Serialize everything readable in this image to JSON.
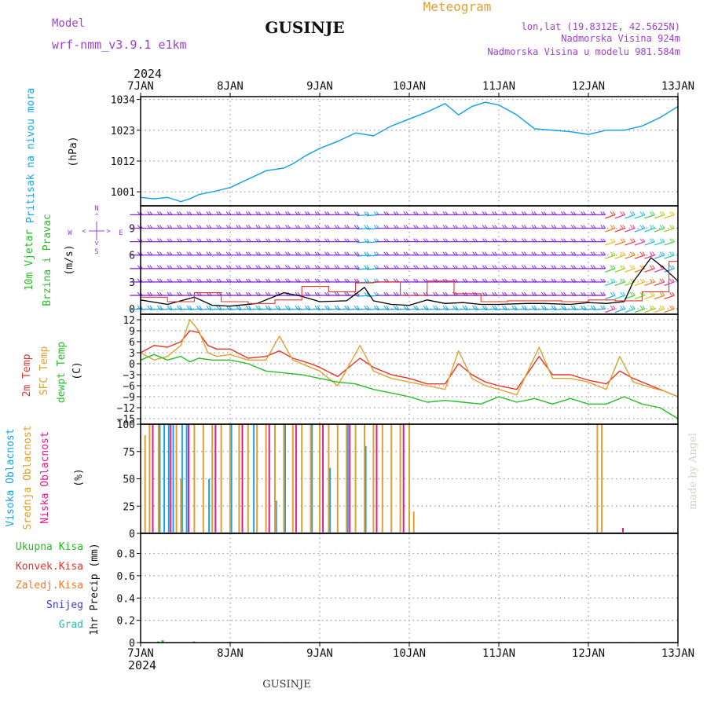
{
  "header": {
    "model_label": "Model",
    "model_name": "wrf-nmm_v3.9.1 e1km",
    "station": "GUSINJE",
    "meteogram_label": "Meteogram",
    "lonlat": "lon,lat (19.8312E, 42.5625N)",
    "elevation": "Nadmorska Visina 924m",
    "model_elevation": "Nadmorska Visina u modelu 981.584m"
  },
  "footer": {
    "station": "GUSINJE",
    "credit": "made by Angel"
  },
  "time_axis": {
    "year": "2024",
    "labels": [
      "7JAN",
      "8JAN",
      "9JAN",
      "10JAN",
      "11JAN",
      "12JAN",
      "13JAN"
    ],
    "range_days": [
      0,
      6
    ]
  },
  "panel_labels": {
    "pressure": [
      "Pritisak na nivou mora",
      "(hPa)"
    ],
    "wind": [
      "10m Vjetar",
      "Brzina i Pravac",
      "(m/s)"
    ],
    "wind_compass": {
      "n": "N",
      "e": "E",
      "w": "W",
      "s": "S",
      "up": "^",
      "down": "v",
      "lt": "<",
      "gt": ">"
    },
    "temp": [
      "2m Temp",
      "SFC Temp",
      "dewpt Temp",
      "(C)"
    ],
    "cloud": [
      "Visoka Oblacnost",
      "Srednja Oblacnost",
      "Niska Oblacnost",
      "(%)"
    ],
    "precip_legend": [
      "Ukupna Kisa",
      "Konvek.Kisa",
      "Zaledj.Kisa",
      "Snijeg",
      "Grad"
    ],
    "precip_axis": "1hr Precip (mm)"
  },
  "colors": {
    "pressure": "#1aa3e8",
    "wind_speed": "#000000",
    "wind_gust": "#e8332a",
    "temp2m": "#e8332a",
    "sfc_temp": "#e0a030",
    "dewpt": "#22c022",
    "cloud_high": "#1aa3e8",
    "cloud_mid": "#e0a030",
    "cloud_low": "#e01b8a",
    "total_rain": "#22c022",
    "conv_rain": "#e8332a",
    "freezing_rain": "#ef7a2a",
    "snow": "#3b3bd6",
    "hail": "#22c2b0",
    "purple_text": "#a040d0",
    "orange_text": "#e0a030"
  },
  "chart_data": [
    {
      "type": "line",
      "name": "pressure",
      "ylim": [
        996,
        1035
      ],
      "yticks": [
        1001,
        1012,
        1023,
        1034
      ],
      "x": [
        0,
        0.15,
        0.3,
        0.45,
        0.55,
        0.65,
        0.8,
        1.0,
        1.2,
        1.4,
        1.6,
        1.7,
        1.85,
        2.0,
        2.2,
        2.4,
        2.6,
        2.8,
        3.0,
        3.2,
        3.4,
        3.55,
        3.7,
        3.85,
        4.0,
        4.2,
        4.4,
        4.6,
        4.8,
        5.0,
        5.2,
        5.4,
        5.6,
        5.8,
        6.0
      ],
      "values": [
        999,
        998.5,
        999,
        997.5,
        998.5,
        1000,
        1001,
        1002.5,
        1005.5,
        1008.5,
        1009.5,
        1011,
        1014,
        1016.5,
        1019,
        1022,
        1021,
        1024.5,
        1027,
        1029.5,
        1032.5,
        1028.5,
        1031.5,
        1033,
        1032,
        1028.5,
        1023.5,
        1023,
        1022.5,
        1021.5,
        1023,
        1023,
        1024.5,
        1027.5,
        1031.5
      ]
    },
    {
      "type": "line",
      "name": "wind",
      "ylim": [
        -0.6,
        11.5
      ],
      "yticks": [
        0,
        3,
        6,
        9
      ],
      "speed": {
        "x": [
          0,
          0.3,
          0.6,
          0.8,
          1.0,
          1.3,
          1.6,
          1.8,
          2.0,
          2.3,
          2.5,
          2.6,
          2.8,
          3.0,
          3.2,
          3.4,
          3.6,
          3.8,
          4.0,
          4.3,
          4.5,
          4.8,
          5.0,
          5.2,
          5.4,
          5.5,
          5.7,
          5.85,
          6.0
        ],
        "values": [
          1.0,
          0.5,
          1.3,
          0.4,
          0.3,
          0.6,
          1.8,
          1.4,
          0.8,
          0.9,
          2.4,
          0.9,
          0.5,
          0.4,
          1.0,
          0.6,
          0.7,
          0.5,
          0.5,
          0.6,
          0.6,
          0.5,
          0.7,
          0.6,
          0.8,
          3.0,
          5.7,
          4.5,
          3.1
        ]
      },
      "gust_x": [
        0,
        0.3,
        0.6,
        0.9,
        1.2,
        1.5,
        1.8,
        2.1,
        2.4,
        2.6,
        2.9,
        3.2,
        3.5,
        3.8,
        4.1,
        4.4,
        4.7,
        5.0,
        5.3,
        5.6,
        5.9
      ],
      "gust_values": [
        1.3,
        0.8,
        1.8,
        0.8,
        0.6,
        1.0,
        2.5,
        1.9,
        2.9,
        3.0,
        1.5,
        3.1,
        1.7,
        0.8,
        0.9,
        0.9,
        0.8,
        1.0,
        0.9,
        1.9,
        5.3
      ]
    },
    {
      "type": "line",
      "name": "temperature",
      "ylim": [
        -16.5,
        13.5
      ],
      "yticks": [
        12,
        9,
        6,
        3,
        0,
        -3,
        -6,
        -9,
        -12,
        -15
      ],
      "series": [
        {
          "name": "2m Temp",
          "x": [
            0,
            0.15,
            0.3,
            0.45,
            0.55,
            0.65,
            0.75,
            0.85,
            1.0,
            1.2,
            1.4,
            1.55,
            1.7,
            1.9,
            2.0,
            2.2,
            2.45,
            2.6,
            2.8,
            3.0,
            3.2,
            3.4,
            3.55,
            3.7,
            3.85,
            4.0,
            4.2,
            4.45,
            4.6,
            4.8,
            5.0,
            5.2,
            5.35,
            5.5,
            5.7,
            5.85,
            6.0
          ],
          "values": [
            3,
            5,
            4.5,
            6,
            9,
            8.5,
            5,
            4,
            4,
            1.5,
            2,
            3.5,
            1.5,
            0,
            -1,
            -3.5,
            1.5,
            -1,
            -3,
            -4,
            -5.5,
            -5.5,
            0,
            -3,
            -5,
            -6,
            -7,
            2,
            -3,
            -3,
            -4.5,
            -5.5,
            -2,
            -4,
            -6,
            -7.5,
            -9
          ]
        },
        {
          "name": "SFC Temp",
          "x": [
            0,
            0.15,
            0.3,
            0.45,
            0.55,
            0.65,
            0.75,
            0.85,
            1.0,
            1.2,
            1.4,
            1.55,
            1.7,
            1.9,
            2.0,
            2.2,
            2.45,
            2.6,
            2.8,
            3.0,
            3.2,
            3.4,
            3.55,
            3.7,
            3.85,
            4.0,
            4.2,
            4.45,
            4.6,
            4.8,
            5.0,
            5.2,
            5.35,
            5.5,
            5.7,
            5.85,
            6.0
          ],
          "values": [
            3,
            1,
            2,
            5,
            12,
            9,
            3,
            2,
            2.5,
            1,
            1,
            7.5,
            1,
            -1,
            -2,
            -6,
            5,
            -2,
            -4,
            -5,
            -6,
            -7,
            3.5,
            -4,
            -6,
            -7,
            -8.5,
            4.5,
            -4,
            -4,
            -5,
            -7,
            2,
            -5,
            -6.5,
            -7.5,
            -9
          ]
        },
        {
          "name": "dewpt Temp",
          "x": [
            0,
            0.15,
            0.3,
            0.45,
            0.55,
            0.65,
            0.8,
            1.0,
            1.2,
            1.4,
            1.6,
            1.8,
            2.0,
            2.2,
            2.4,
            2.6,
            2.8,
            3.0,
            3.2,
            3.4,
            3.6,
            3.8,
            4.0,
            4.2,
            4.4,
            4.6,
            4.8,
            5.0,
            5.2,
            5.4,
            5.6,
            5.8,
            6.0
          ],
          "values": [
            1,
            2.5,
            1,
            2,
            0.5,
            1.5,
            1,
            1,
            0,
            -2,
            -2.5,
            -3,
            -4,
            -5,
            -5.5,
            -7,
            -8,
            -9,
            -10.5,
            -10,
            -10.5,
            -11,
            -9,
            -10.5,
            -9.5,
            -11,
            -9.5,
            -11,
            -11,
            -9,
            -11,
            -12,
            -15
          ]
        }
      ]
    },
    {
      "type": "bar",
      "name": "cloud cover",
      "ylim": [
        0,
        100
      ],
      "yticks": [
        0,
        25,
        50,
        75,
        100
      ],
      "high": {
        "x": [
          0.2,
          0.25,
          0.3,
          0.35,
          0.45,
          0.5,
          0.75,
          1.0,
          1.25,
          1.5,
          1.6,
          1.9,
          2.1,
          2.3,
          2.5
        ],
        "values": [
          100,
          100,
          100,
          100,
          100,
          100,
          50,
          100,
          100,
          30,
          100,
          100,
          60,
          100,
          80
        ]
      },
      "mid": {
        "x": [
          0.05,
          0.1,
          0.2,
          0.4,
          0.45,
          0.6,
          0.7,
          0.8,
          0.9,
          1.0,
          1.1,
          1.2,
          1.3,
          1.4,
          1.5,
          1.6,
          1.7,
          1.8,
          1.9,
          2.0,
          2.1,
          2.2,
          2.3,
          2.4,
          2.5,
          2.6,
          2.7,
          2.8,
          2.9,
          3.0,
          3.05,
          5.1,
          5.15
        ],
        "values": [
          90,
          100,
          100,
          100,
          50,
          100,
          100,
          100,
          100,
          100,
          100,
          100,
          100,
          100,
          100,
          100,
          100,
          100,
          100,
          100,
          100,
          100,
          100,
          100,
          100,
          100,
          100,
          100,
          100,
          100,
          20,
          100,
          100
        ]
      },
      "low": {
        "x": [
          0.15,
          0.35,
          0.55,
          0.85,
          1.15,
          1.45,
          1.75,
          2.05,
          2.35,
          2.65,
          2.95,
          5.4
        ],
        "values": [
          100,
          100,
          100,
          100,
          100,
          100,
          100,
          100,
          100,
          100,
          100,
          5
        ]
      }
    },
    {
      "type": "bar",
      "name": "precipitation",
      "ylim": [
        0,
        0.98
      ],
      "yticks": [
        0,
        0.2,
        0.4,
        0.6,
        0.8
      ],
      "total_rain": {
        "x": [
          0.2,
          0.25
        ],
        "values": [
          0.01,
          0.02
        ]
      },
      "freezing_rain": {
        "x": [
          0.6
        ],
        "values": [
          0.01
        ]
      }
    }
  ]
}
